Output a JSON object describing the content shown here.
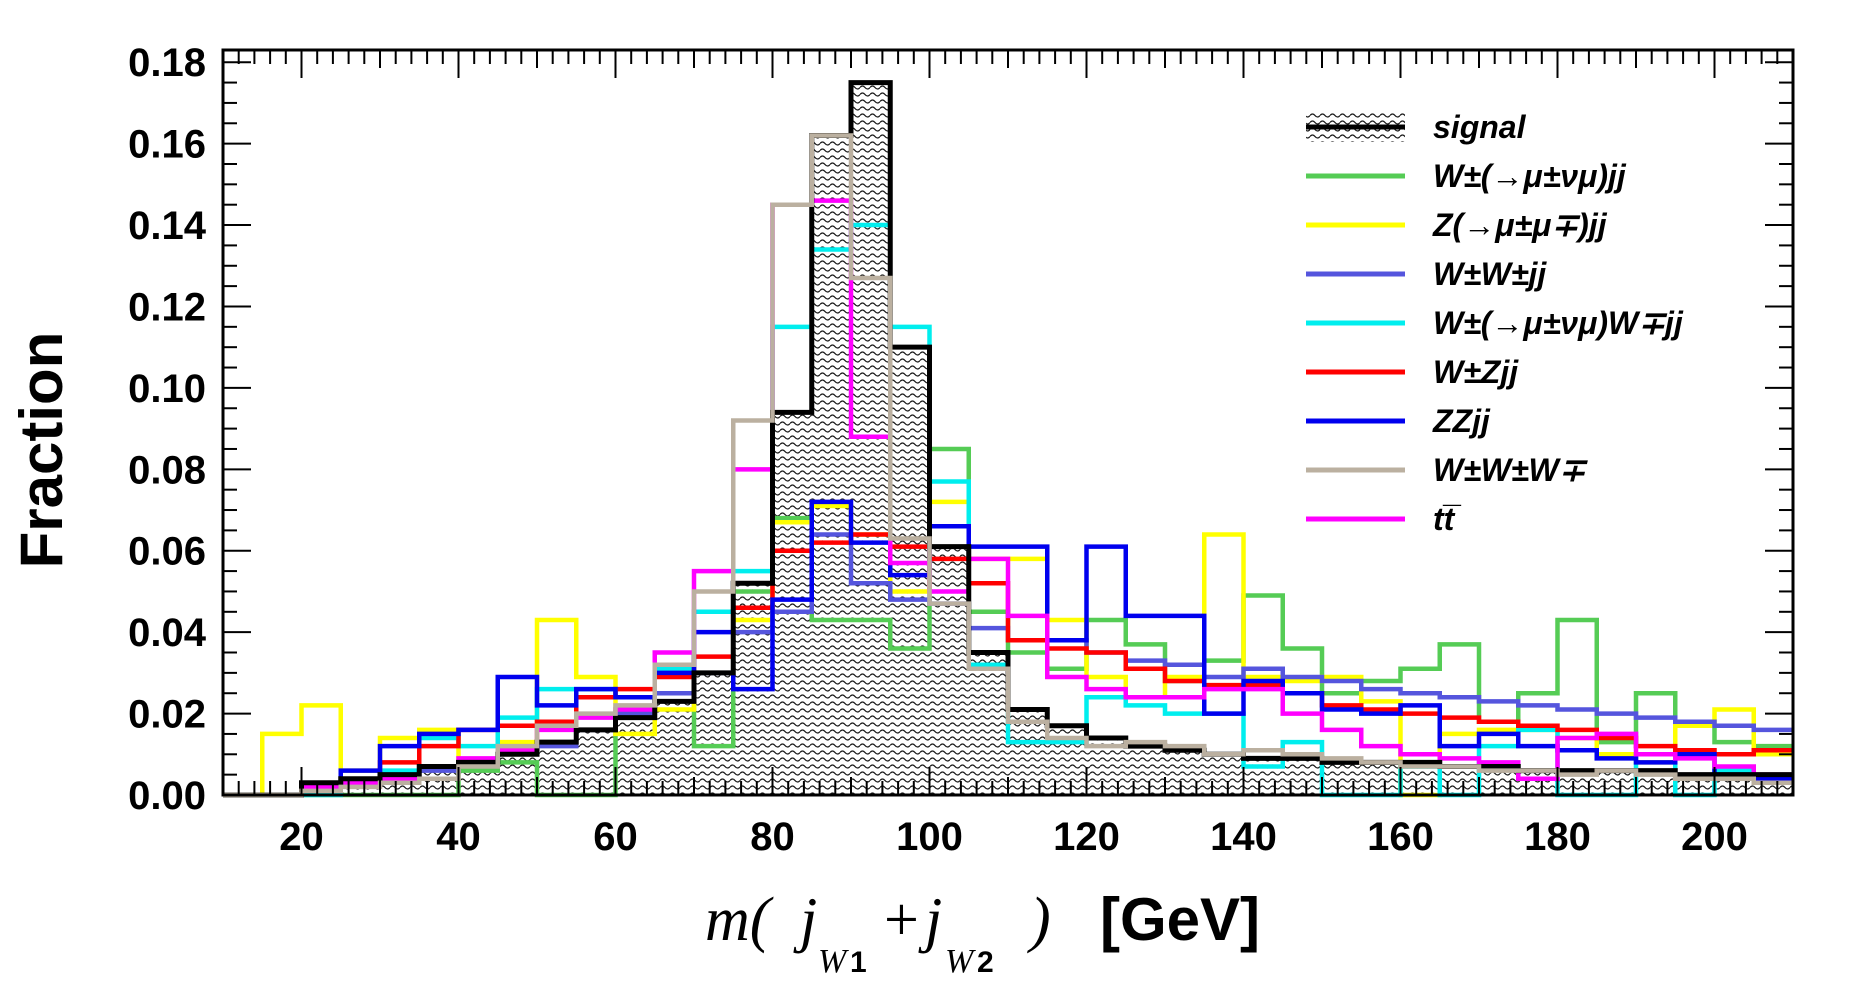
{
  "chart_data": {
    "type": "step-histogram",
    "title": "",
    "xlabel": {
      "pre": "m(",
      "j1": "j",
      "sub1": "W",
      "sub1num": "1",
      "plus": "+",
      "j2": "j",
      "sub2": "W",
      "sub2num": "2",
      "post": ")",
      "unit": "[GeV]"
    },
    "ylabel": "Fraction",
    "xlim": [
      10,
      210
    ],
    "ylim": [
      0,
      0.183
    ],
    "bin_width": 5,
    "x_ticks": [
      20,
      40,
      60,
      80,
      100,
      120,
      140,
      160,
      180,
      200
    ],
    "x_tick_labels": [
      "20",
      "40",
      "60",
      "80",
      "100",
      "120",
      "140",
      "160",
      "180",
      "200"
    ],
    "y_ticks": [
      0,
      0.02,
      0.04,
      0.06,
      0.08,
      0.1,
      0.12,
      0.14,
      0.16,
      0.18
    ],
    "y_tick_labels": [
      "0.00",
      "0.02",
      "0.04",
      "0.06",
      "0.08",
      "0.10",
      "0.12",
      "0.14",
      "0.16",
      "0.18"
    ],
    "legend_position": "top-right",
    "x_bin_edges_start": 10,
    "series": [
      {
        "name": "signal",
        "color": "#000000",
        "filled": true,
        "values": [
          0.0,
          0.0,
          0.003,
          0.004,
          0.005,
          0.007,
          0.008,
          0.01,
          0.013,
          0.016,
          0.019,
          0.023,
          0.03,
          0.052,
          0.094,
          0.162,
          0.175,
          0.11,
          0.061,
          0.035,
          0.021,
          0.017,
          0.014,
          0.012,
          0.011,
          0.01,
          0.009,
          0.009,
          0.008,
          0.008,
          0.008,
          0.007,
          0.007,
          0.006,
          0.006,
          0.006,
          0.006,
          0.005,
          0.005,
          0.005
        ]
      },
      {
        "name": "W±(→μ±νμ)jj",
        "color": "#55cc55",
        "filled": false,
        "values": [
          0.0,
          0.0,
          0.0,
          0.0,
          0.0,
          0.0,
          0.006,
          0.008,
          0.0,
          0.0,
          0.02,
          0.032,
          0.012,
          0.05,
          0.068,
          0.043,
          0.043,
          0.036,
          0.085,
          0.045,
          0.035,
          0.031,
          0.043,
          0.037,
          0.028,
          0.033,
          0.049,
          0.036,
          0.025,
          0.028,
          0.031,
          0.037,
          0.018,
          0.025,
          0.043,
          0.013,
          0.025,
          0.017,
          0.013,
          0.012
        ]
      },
      {
        "name": "Z(→μ±μ∓)jj",
        "color": "#ffff00",
        "filled": false,
        "values": [
          0.0,
          0.015,
          0.022,
          0.006,
          0.014,
          0.016,
          0.008,
          0.013,
          0.043,
          0.029,
          0.015,
          0.021,
          0.045,
          0.043,
          0.067,
          0.071,
          0.064,
          0.05,
          0.072,
          0.058,
          0.058,
          0.043,
          0.029,
          0.024,
          0.029,
          0.064,
          0.029,
          0.028,
          0.029,
          0.023,
          0.0,
          0.015,
          0.016,
          0.016,
          0.014,
          0.01,
          0.008,
          0.017,
          0.021,
          0.01
        ]
      },
      {
        "name": "W±W±jj",
        "color": "#5555dd",
        "filled": false,
        "values": [
          0.0,
          0.0,
          0.001,
          0.003,
          0.004,
          0.006,
          0.008,
          0.01,
          0.012,
          0.016,
          0.02,
          0.025,
          0.03,
          0.04,
          0.045,
          0.064,
          0.052,
          0.048,
          0.047,
          0.041,
          0.038,
          0.038,
          0.035,
          0.033,
          0.032,
          0.029,
          0.031,
          0.029,
          0.028,
          0.026,
          0.025,
          0.024,
          0.023,
          0.022,
          0.021,
          0.02,
          0.019,
          0.018,
          0.017,
          0.016
        ]
      },
      {
        "name": "W±(→μ±νμ)W∓jj",
        "color": "#00eeee",
        "filled": false,
        "values": [
          0.0,
          0.0,
          0.0,
          0.003,
          0.006,
          0.014,
          0.012,
          0.019,
          0.026,
          0.026,
          0.024,
          0.031,
          0.045,
          0.055,
          0.115,
          0.134,
          0.14,
          0.115,
          0.077,
          0.032,
          0.013,
          0.013,
          0.024,
          0.022,
          0.02,
          0.02,
          0.007,
          0.013,
          0.0,
          0.0,
          0.007,
          0.0,
          0.012,
          0.016,
          0.0,
          0.0,
          0.01,
          0.0,
          0.006,
          0.004
        ]
      },
      {
        "name": "W±Zjj",
        "color": "#ff0000",
        "filled": false,
        "values": [
          0.0,
          0.0,
          0.002,
          0.004,
          0.008,
          0.012,
          0.016,
          0.017,
          0.018,
          0.024,
          0.026,
          0.029,
          0.034,
          0.046,
          0.06,
          0.062,
          0.064,
          0.061,
          0.058,
          0.052,
          0.038,
          0.036,
          0.035,
          0.031,
          0.028,
          0.027,
          0.027,
          0.025,
          0.022,
          0.021,
          0.02,
          0.019,
          0.018,
          0.017,
          0.016,
          0.014,
          0.012,
          0.011,
          0.01,
          0.011
        ]
      },
      {
        "name": "ZZjj",
        "color": "#0000ee",
        "filled": false,
        "values": [
          0.0,
          0.0,
          0.003,
          0.006,
          0.012,
          0.015,
          0.016,
          0.029,
          0.022,
          0.026,
          0.024,
          0.03,
          0.04,
          0.026,
          0.048,
          0.072,
          0.062,
          0.054,
          0.066,
          0.061,
          0.061,
          0.038,
          0.061,
          0.044,
          0.044,
          0.02,
          0.028,
          0.025,
          0.021,
          0.02,
          0.022,
          0.012,
          0.015,
          0.012,
          0.011,
          0.009,
          0.008,
          0.01,
          0.005,
          0.004
        ]
      },
      {
        "name": "W±W±W∓",
        "color": "#bbb0a0",
        "filled": false,
        "values": [
          0.0,
          0.0,
          0.001,
          0.002,
          0.003,
          0.004,
          0.007,
          0.012,
          0.017,
          0.02,
          0.022,
          0.032,
          0.05,
          0.092,
          0.145,
          0.162,
          0.127,
          0.063,
          0.047,
          0.031,
          0.018,
          0.014,
          0.012,
          0.013,
          0.012,
          0.01,
          0.011,
          0.01,
          0.009,
          0.008,
          0.007,
          0.007,
          0.006,
          0.006,
          0.005,
          0.006,
          0.005,
          0.004,
          0.004,
          0.003
        ]
      },
      {
        "name": "tt̅",
        "color": "#ff00ff",
        "filled": false,
        "values": [
          0.0,
          0.0,
          0.002,
          0.003,
          0.004,
          0.007,
          0.009,
          0.011,
          0.016,
          0.019,
          0.021,
          0.035,
          0.055,
          0.08,
          0.145,
          0.146,
          0.088,
          0.057,
          0.05,
          0.058,
          0.044,
          0.029,
          0.026,
          0.024,
          0.024,
          0.026,
          0.026,
          0.02,
          0.016,
          0.012,
          0.01,
          0.009,
          0.008,
          0.004,
          0.014,
          0.015,
          0.01,
          0.009,
          0.007,
          0.005
        ]
      }
    ],
    "legend_labels": [
      "signal",
      "W±(→μ±νμ)jj",
      "Z(→μ±μ∓)jj",
      "W±W±jj",
      "W±(→μ±νμ)W∓jj",
      "W±Zjj",
      "ZZjj",
      "W±W±W∓",
      "tt̅"
    ]
  }
}
